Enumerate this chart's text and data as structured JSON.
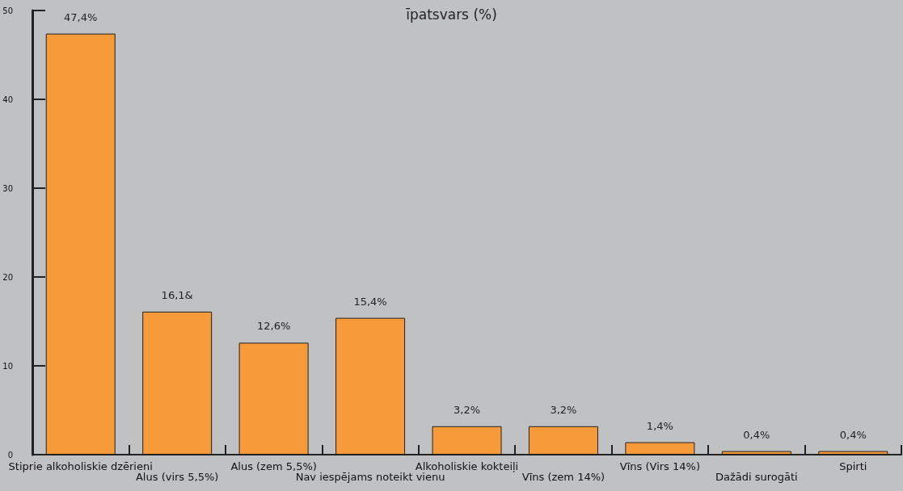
{
  "chart_data": {
    "type": "bar",
    "title": "īpatsvars (%)",
    "categories": [
      "Stiprie alkoholiskie dzērieni",
      "Alus (virs 5,5%)",
      "Alus (zem 5,5%)",
      "Nav iespējams noteikt vienu",
      "Alkoholiskie kokteiļi",
      "Vīns (zem 14%)",
      "Vīns (Virs 14%)",
      "Dažādi surogāti",
      "Spirti"
    ],
    "values": [
      47.4,
      16.1,
      12.6,
      15.4,
      3.2,
      3.2,
      1.4,
      0.4,
      0.4
    ],
    "value_labels": [
      "47,4%",
      "16,1&",
      "12,6%",
      "15,4%",
      "3,2%",
      "3,2%",
      "1,4%",
      "0,4%",
      "0,4%"
    ],
    "color": "#f79a3a",
    "ylim": [
      0,
      50
    ],
    "yticks": [
      0,
      10,
      20,
      30,
      40,
      50
    ],
    "grid": false
  }
}
